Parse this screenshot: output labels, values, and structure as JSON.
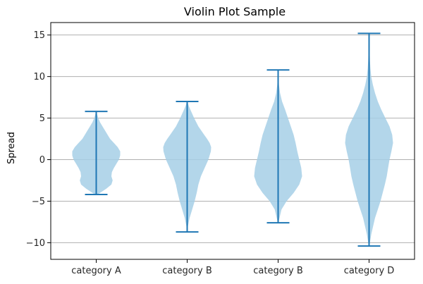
{
  "chart_data": {
    "type": "violin",
    "title": "Violin Plot Sample",
    "xlabel": "",
    "ylabel": "Spread",
    "categories": [
      "category A",
      "category B",
      "category B",
      "category D"
    ],
    "ylim": [
      -12,
      16.5
    ],
    "yticks": [
      -10,
      -5,
      0,
      5,
      10,
      15
    ],
    "ytick_labels": [
      "−10",
      "−5",
      "0",
      "5",
      "10",
      "15"
    ],
    "grid": "horizontal",
    "colors": {
      "body": "#a6cfe6",
      "lines": "#1f77b4",
      "grid": "#b0b0b0"
    },
    "series": [
      {
        "category": "category A",
        "min": -4.2,
        "max": 5.8,
        "density": [
          [
            -4.2,
            0.05
          ],
          [
            -3.9,
            0.2
          ],
          [
            -3.5,
            0.4
          ],
          [
            -3,
            0.6
          ],
          [
            -2.5,
            0.65
          ],
          [
            -2,
            0.6
          ],
          [
            -1.5,
            0.62
          ],
          [
            -1,
            0.7
          ],
          [
            -0.5,
            0.8
          ],
          [
            0,
            0.9
          ],
          [
            0.5,
            0.95
          ],
          [
            1,
            0.95
          ],
          [
            1.5,
            0.85
          ],
          [
            2,
            0.7
          ],
          [
            2.5,
            0.55
          ],
          [
            3,
            0.45
          ],
          [
            3.5,
            0.35
          ],
          [
            4,
            0.25
          ],
          [
            4.5,
            0.15
          ],
          [
            5,
            0.08
          ],
          [
            5.5,
            0.03
          ],
          [
            5.8,
            0.01
          ]
        ]
      },
      {
        "category": "category B",
        "min": -8.7,
        "max": 7.0,
        "density": [
          [
            -8.7,
            0.01
          ],
          [
            -8,
            0.03
          ],
          [
            -7,
            0.1
          ],
          [
            -6,
            0.2
          ],
          [
            -5,
            0.3
          ],
          [
            -4,
            0.38
          ],
          [
            -3,
            0.45
          ],
          [
            -2,
            0.55
          ],
          [
            -1,
            0.7
          ],
          [
            0,
            0.85
          ],
          [
            1,
            0.95
          ],
          [
            1.5,
            0.96
          ],
          [
            2,
            0.9
          ],
          [
            2.5,
            0.8
          ],
          [
            3,
            0.68
          ],
          [
            4,
            0.45
          ],
          [
            5,
            0.28
          ],
          [
            6,
            0.13
          ],
          [
            6.5,
            0.06
          ],
          [
            7,
            0.01
          ]
        ]
      },
      {
        "category": "category B",
        "min": -7.6,
        "max": 10.8,
        "density": [
          [
            -7.6,
            0.01
          ],
          [
            -7,
            0.05
          ],
          [
            -6,
            0.12
          ],
          [
            -5,
            0.3
          ],
          [
            -4,
            0.55
          ],
          [
            -3,
            0.75
          ],
          [
            -2,
            0.85
          ],
          [
            -1,
            0.82
          ],
          [
            0,
            0.75
          ],
          [
            1,
            0.68
          ],
          [
            2,
            0.62
          ],
          [
            3,
            0.55
          ],
          [
            4,
            0.45
          ],
          [
            5,
            0.35
          ],
          [
            6,
            0.25
          ],
          [
            7,
            0.14
          ],
          [
            8,
            0.07
          ],
          [
            9,
            0.03
          ],
          [
            10,
            0.01
          ],
          [
            10.8,
            0.0
          ]
        ]
      },
      {
        "category": "category D",
        "min": -10.4,
        "max": 15.2,
        "density": [
          [
            -10.4,
            0.01
          ],
          [
            -10,
            0.03
          ],
          [
            -9,
            0.08
          ],
          [
            -8,
            0.15
          ],
          [
            -7,
            0.22
          ],
          [
            -6,
            0.32
          ],
          [
            -5,
            0.42
          ],
          [
            -4,
            0.5
          ],
          [
            -3,
            0.58
          ],
          [
            -2,
            0.65
          ],
          [
            -1,
            0.7
          ],
          [
            0,
            0.75
          ],
          [
            1,
            0.82
          ],
          [
            2,
            0.88
          ],
          [
            3,
            0.85
          ],
          [
            4,
            0.75
          ],
          [
            5,
            0.6
          ],
          [
            6,
            0.45
          ],
          [
            7,
            0.32
          ],
          [
            8,
            0.22
          ],
          [
            9,
            0.14
          ],
          [
            10,
            0.08
          ],
          [
            11,
            0.05
          ],
          [
            12,
            0.03
          ],
          [
            13,
            0.02
          ],
          [
            14,
            0.01
          ],
          [
            15.2,
            0.0
          ]
        ]
      }
    ]
  }
}
